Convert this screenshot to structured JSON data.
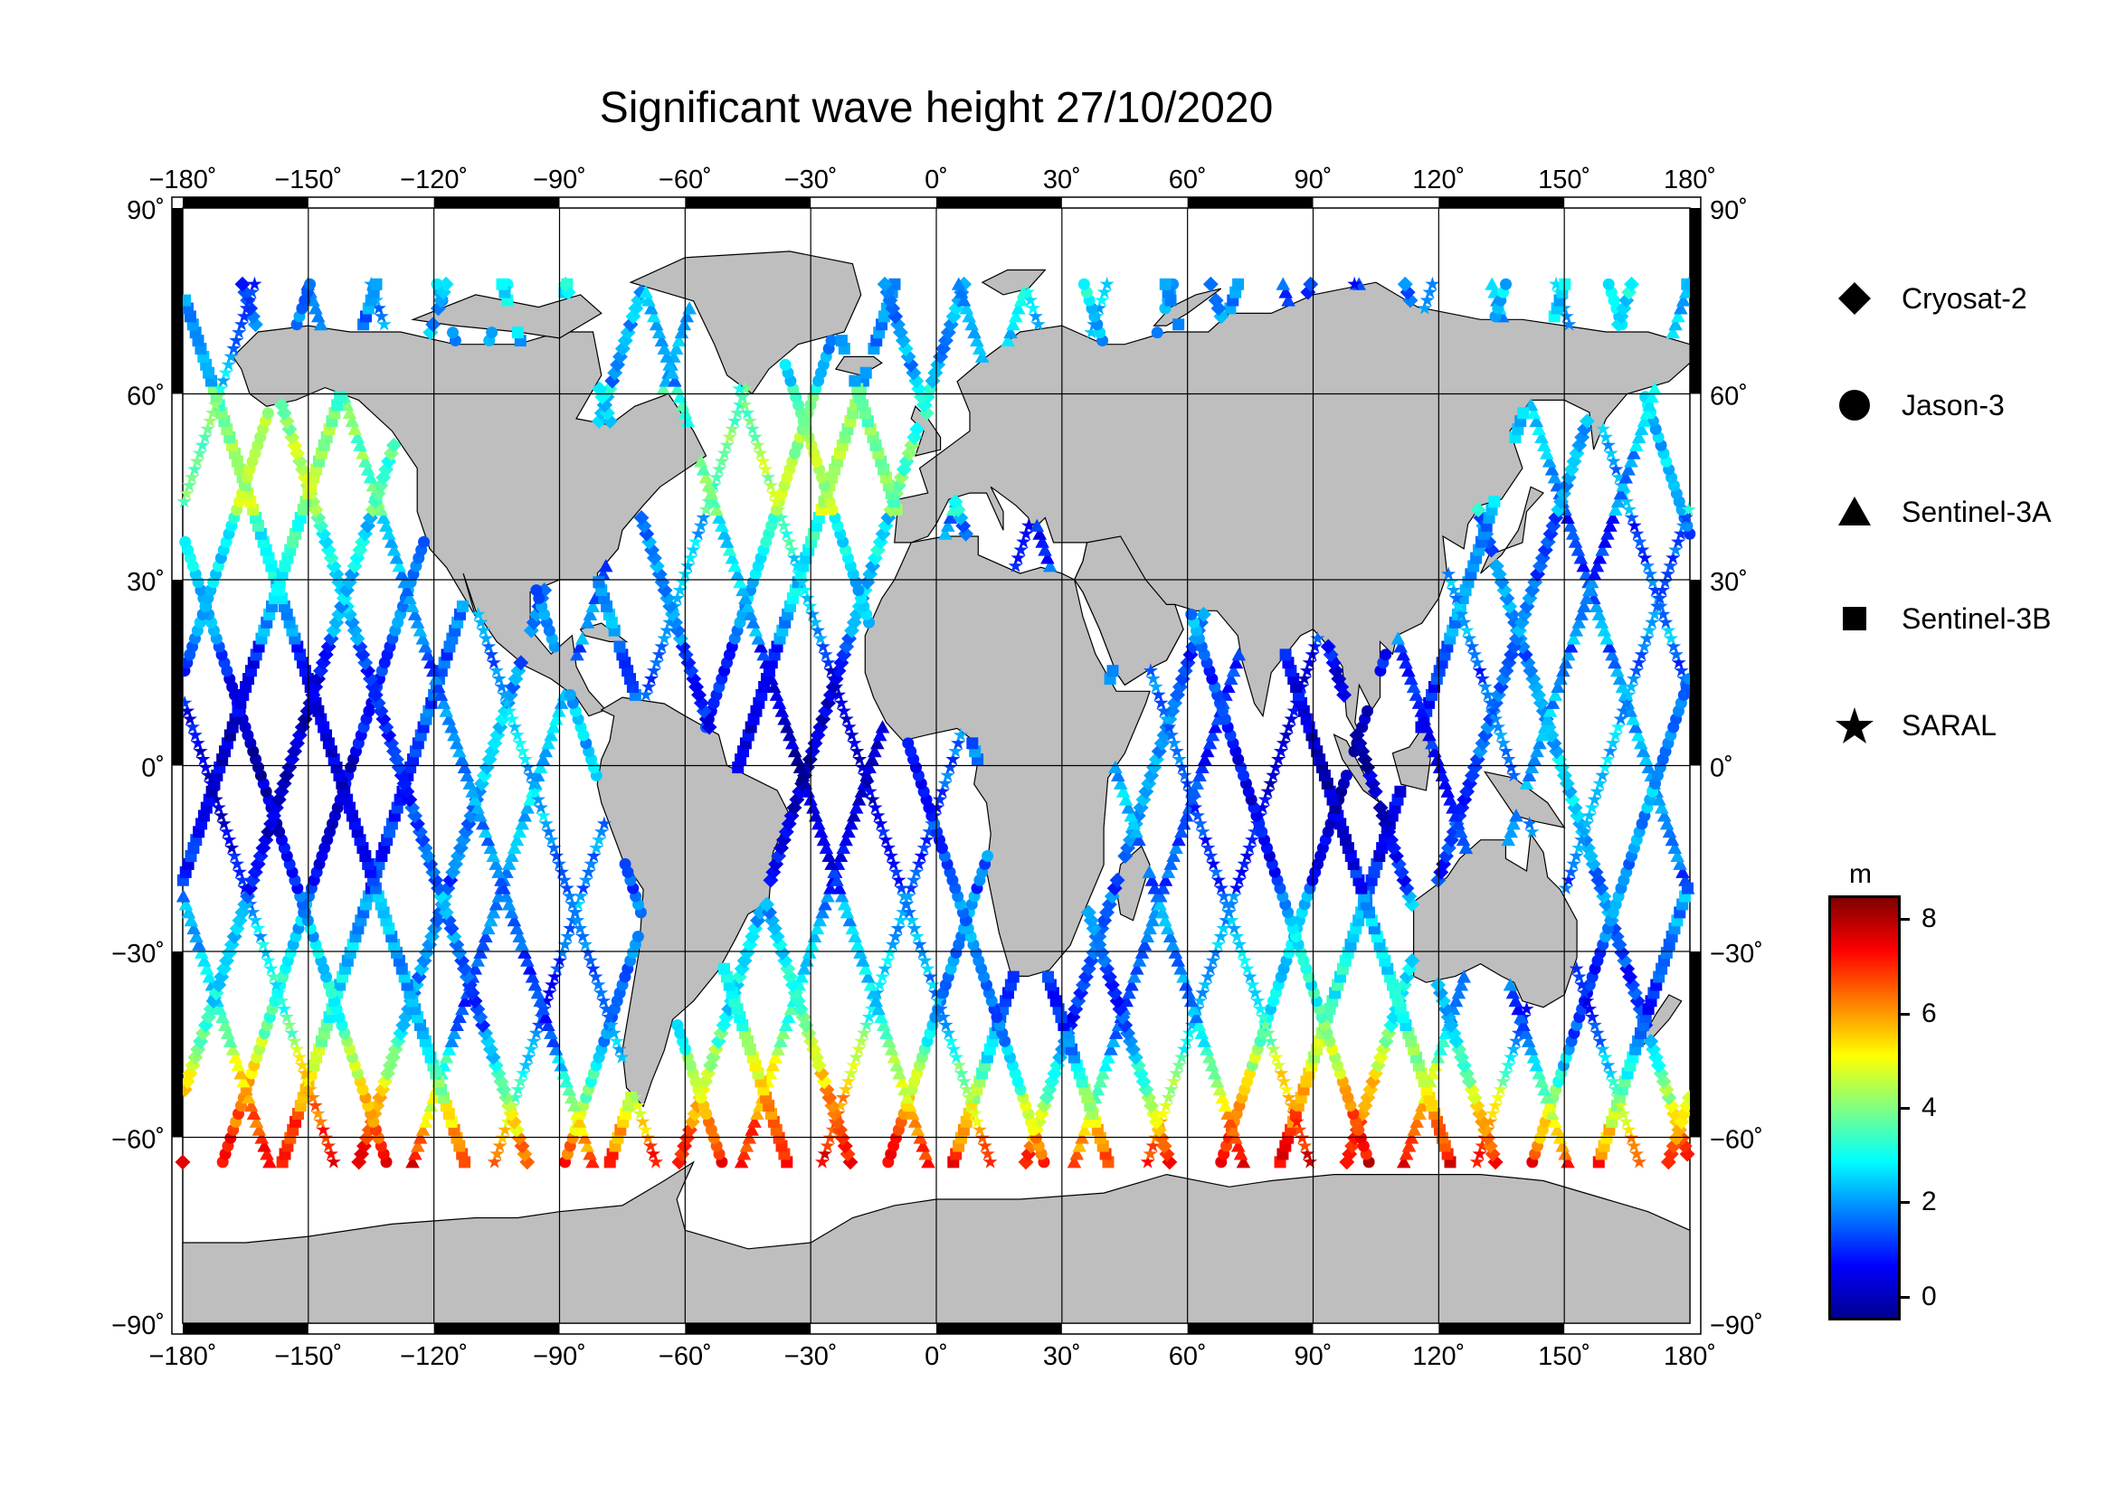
{
  "title": "Significant wave height 27/10/2020",
  "map": {
    "lon_ticks": [
      "−180˚",
      "−150˚",
      "−120˚",
      "−90˚",
      "−60˚",
      "−30˚",
      "0˚",
      "30˚",
      "60˚",
      "90˚",
      "120˚",
      "150˚",
      "180˚"
    ],
    "lat_ticks_left": [
      "90˚",
      "60˚",
      "30˚",
      "0˚",
      "−30˚",
      "−60˚",
      "−90˚"
    ],
    "lat_ticks_right": [
      "90˚",
      "60˚",
      "30˚",
      "0˚",
      "−30˚",
      "−60˚",
      "−90˚"
    ],
    "land_color": "#bebebe",
    "ocean_color": "#ffffff"
  },
  "legend": {
    "items": [
      {
        "label": "Cryosat-2",
        "symbol": "diamond-icon"
      },
      {
        "label": "Jason-3",
        "symbol": "circle-icon"
      },
      {
        "label": "Sentinel-3A",
        "symbol": "triangle-icon"
      },
      {
        "label": "Sentinel-3B",
        "symbol": "square-icon"
      },
      {
        "label": "SARAL",
        "symbol": "star-icon"
      }
    ]
  },
  "colorbar": {
    "unit": "m",
    "ticks": [
      "8",
      "6",
      "4",
      "2",
      "0"
    ],
    "range": [
      -0.5,
      8.5
    ],
    "colors": [
      "#00008f",
      "#0000ff",
      "#0080ff",
      "#00ffff",
      "#80ff80",
      "#ffff00",
      "#ff8000",
      "#ff0000",
      "#800000"
    ]
  }
}
